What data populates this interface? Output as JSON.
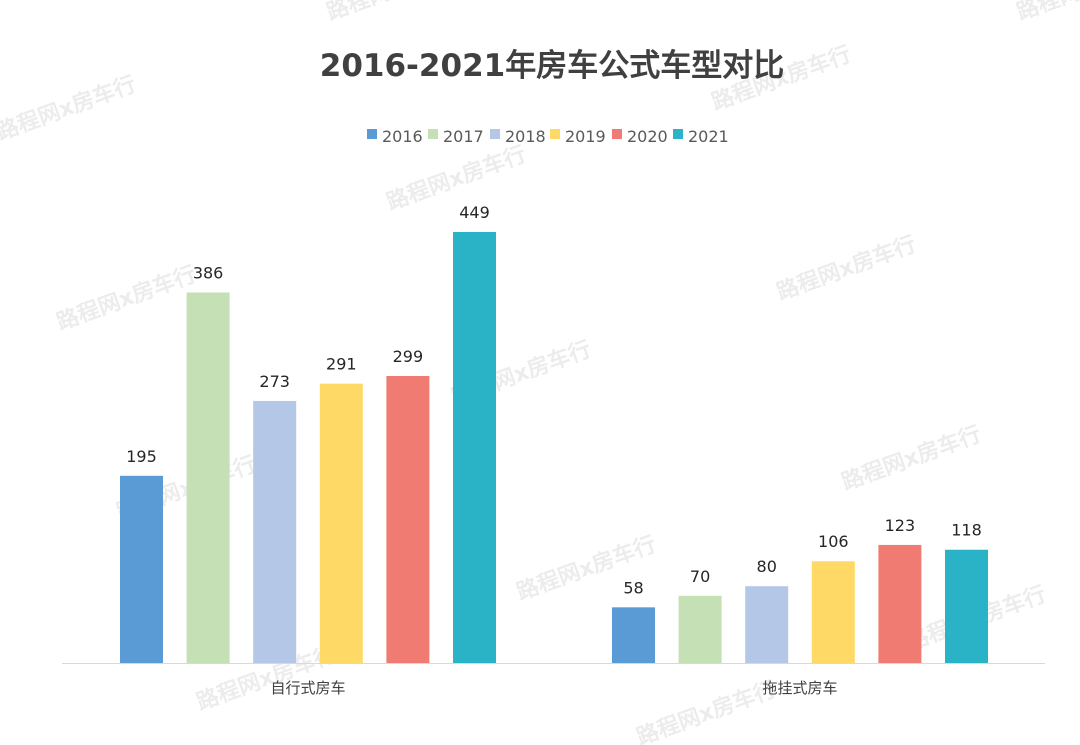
{
  "watermark": "路程网x房车行",
  "chart_data": {
    "type": "bar",
    "title": "2016-2021年房车公式车型对比",
    "categories": [
      "自行式房车",
      "拖挂式房车"
    ],
    "series": [
      {
        "name": "2016",
        "color": "#5b9bd5",
        "values": [
          195,
          58
        ]
      },
      {
        "name": "2017",
        "color": "#c5e0b4",
        "values": [
          386,
          70
        ]
      },
      {
        "name": "2018",
        "color": "#b4c7e7",
        "values": [
          273,
          80
        ]
      },
      {
        "name": "2019",
        "color": "#ffd966",
        "values": [
          291,
          106
        ]
      },
      {
        "name": "2020",
        "color": "#f07b72",
        "values": [
          299,
          123
        ]
      },
      {
        "name": "2021",
        "color": "#2ab3c6",
        "values": [
          449,
          118
        ]
      }
    ],
    "ylim": [
      0,
      449
    ],
    "legend": "top",
    "grid": false,
    "xlabel": "",
    "ylabel": ""
  }
}
